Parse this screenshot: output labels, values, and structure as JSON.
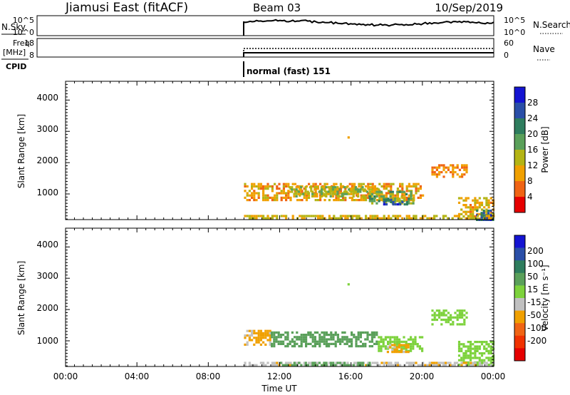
{
  "header": {
    "station": "Jiamusi East (fitACF)",
    "beam": "Beam 03",
    "date": "10/Sep/2019"
  },
  "noise_panel": {
    "left_label": "N.Sky",
    "right_label": "N.Search",
    "left_ticks": [
      "10^5",
      "10^0"
    ],
    "right_ticks": [
      "10^5",
      "10^0"
    ]
  },
  "freq_panel": {
    "left_label_1": "Freq.",
    "left_label_2": "[MHz]",
    "right_label": "Nave",
    "left_ticks": [
      "18",
      "8"
    ],
    "right_ticks": [
      "60",
      "0"
    ]
  },
  "cpid_panel": {
    "label": "CPID",
    "program": "normal (fast) 151"
  },
  "colors": {
    "power": [
      "#1414d2",
      "#2a4fa8",
      "#2e7d5e",
      "#5aa05a",
      "#b4b414",
      "#f0a000",
      "#f06414",
      "#e60000"
    ],
    "velocity": [
      "#1414d2",
      "#2a4fa8",
      "#2e7d5e",
      "#5aa05a",
      "#7dd23c",
      "#c0c0c0",
      "#f0a000",
      "#f06414",
      "#f03200",
      "#e60000"
    ]
  },
  "chart_data": [
    {
      "type": "heatmap",
      "title": "",
      "xlabel": "",
      "ylabel": "Slant Range [km]",
      "x_ticks": [
        "00:00",
        "04:00",
        "08:00",
        "12:00",
        "16:00",
        "20:00",
        "00:00"
      ],
      "xlim_hours": [
        0,
        24
      ],
      "y_ticks": [
        "4000",
        "3000",
        "2000",
        "1000"
      ],
      "ylim_km": [
        180,
        4600
      ],
      "colorbar_label": "Power [dB]",
      "colorbar_ticks": [
        "28",
        "24",
        "20",
        "16",
        "12",
        "8",
        "4"
      ],
      "colorbar_range": [
        0,
        32
      ],
      "regions": [
        {
          "t0": 10.0,
          "t1": 20.0,
          "r0": 820,
          "r1": 1350,
          "value": 10
        },
        {
          "t0": 12.5,
          "t1": 17.5,
          "r0": 950,
          "r1": 1250,
          "value": 14
        },
        {
          "t0": 17.0,
          "t1": 19.5,
          "r0": 700,
          "r1": 1100,
          "value": 18
        },
        {
          "t0": 17.8,
          "t1": 19.2,
          "r0": 700,
          "r1": 850,
          "value": 26
        },
        {
          "t0": 20.5,
          "t1": 22.5,
          "r0": 1550,
          "r1": 1950,
          "value": 8
        },
        {
          "t0": 22.0,
          "t1": 24.0,
          "r0": 200,
          "r1": 900,
          "value": 11
        },
        {
          "t0": 23.0,
          "t1": 24.0,
          "r0": 200,
          "r1": 500,
          "value": 25
        },
        {
          "t0": 10.0,
          "t1": 24.0,
          "r0": 190,
          "r1": 330,
          "value": 12
        },
        {
          "t0": 15.8,
          "t1": 15.9,
          "r0": 2800,
          "r1": 2840,
          "value": 6
        }
      ]
    },
    {
      "type": "heatmap",
      "title": "",
      "xlabel": "Time UT",
      "ylabel": "Slant Range [km]",
      "x_ticks": [
        "00:00",
        "04:00",
        "08:00",
        "12:00",
        "16:00",
        "20:00",
        "00:00"
      ],
      "xlim_hours": [
        0,
        24
      ],
      "y_ticks": [
        "4000",
        "3000",
        "2000",
        "1000"
      ],
      "ylim_km": [
        180,
        4600
      ],
      "colorbar_label": "Velocity [m s⁻¹]",
      "colorbar_ticks": [
        "200",
        "100",
        "50",
        "15",
        "-15",
        "-50",
        "-100",
        "-200"
      ],
      "colorbar_values": [
        250,
        200,
        100,
        50,
        15,
        -15,
        -50,
        -100,
        -200,
        -250
      ],
      "regions": [
        {
          "t0": 10.0,
          "t1": 11.5,
          "r0": 850,
          "r1": 1350,
          "value": -60
        },
        {
          "t0": 11.5,
          "t1": 17.5,
          "r0": 850,
          "r1": 1300,
          "value": 30
        },
        {
          "t0": 17.5,
          "t1": 20.0,
          "r0": 650,
          "r1": 1150,
          "value": 0
        },
        {
          "t0": 18.0,
          "t1": 19.2,
          "r0": 650,
          "r1": 900,
          "value": -60
        },
        {
          "t0": 20.5,
          "t1": 22.5,
          "r0": 1550,
          "r1": 2000,
          "value": 0
        },
        {
          "t0": 22.0,
          "t1": 24.0,
          "r0": 200,
          "r1": 1000,
          "value": 0
        },
        {
          "t0": 10.0,
          "t1": 24.0,
          "r0": 190,
          "r1": 330,
          "value": -40
        },
        {
          "t0": 12.0,
          "t1": 17.0,
          "r0": 190,
          "r1": 330,
          "value": 30
        },
        {
          "t0": 15.8,
          "t1": 15.9,
          "r0": 2800,
          "r1": 2840,
          "value": 0
        }
      ]
    }
  ]
}
